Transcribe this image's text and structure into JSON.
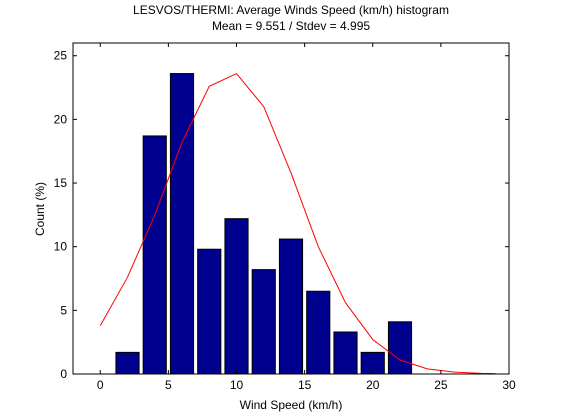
{
  "chart_data": {
    "type": "bar",
    "title": "LESVOS/THERMI: Average Winds Speed (km/h) histogram",
    "subtitle": "Mean = 9.551 / Stdev = 4.995",
    "xlabel": "Wind Speed (km/h)",
    "ylabel": "Count (%)",
    "xlim": [
      -2,
      30
    ],
    "ylim": [
      0,
      26
    ],
    "xticks": [
      0,
      5,
      10,
      15,
      20,
      25,
      30
    ],
    "yticks": [
      0,
      5,
      10,
      15,
      20,
      25
    ],
    "grid": false,
    "bar_width": 1.7,
    "bars": [
      {
        "x": 2,
        "value": 1.7
      },
      {
        "x": 4,
        "value": 18.7
      },
      {
        "x": 6,
        "value": 23.6
      },
      {
        "x": 8,
        "value": 9.8
      },
      {
        "x": 10,
        "value": 12.2
      },
      {
        "x": 12,
        "value": 8.2
      },
      {
        "x": 14,
        "value": 10.6
      },
      {
        "x": 16,
        "value": 6.5
      },
      {
        "x": 18,
        "value": 3.3
      },
      {
        "x": 20,
        "value": 1.7
      },
      {
        "x": 22,
        "value": 4.1
      }
    ],
    "fit_curve": {
      "x": [
        0,
        2,
        4,
        6,
        8,
        10,
        12,
        14,
        16,
        18,
        20,
        22,
        24,
        26,
        28,
        29
      ],
      "y": [
        3.8,
        7.6,
        12.5,
        18.2,
        22.6,
        23.6,
        21.0,
        15.8,
        10.0,
        5.6,
        2.7,
        1.1,
        0.4,
        0.15,
        0.05,
        0.03
      ]
    },
    "colors": {
      "bar_fill": "#00008f",
      "bar_edge": "#000000",
      "curve": "#ff0000",
      "axes": "#000000",
      "background": "#ffffff"
    }
  }
}
